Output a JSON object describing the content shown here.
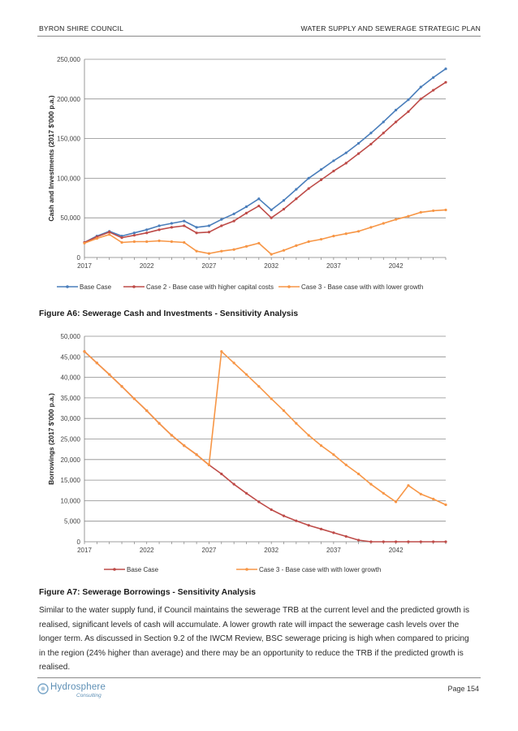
{
  "header": {
    "left": "BYRON SHIRE COUNCIL",
    "right": "WATER SUPPLY AND SEWERAGE STRATEGIC PLAN"
  },
  "chart_data": [
    {
      "type": "line",
      "title": "",
      "xlabel": "",
      "ylabel": "Cash and Investments (2017 $'000 p.a.)",
      "ylim": [
        0,
        250000
      ],
      "yticks": [
        0,
        50000,
        100000,
        150000,
        200000,
        250000
      ],
      "ytick_labels": [
        "0",
        "50,000",
        "100,000",
        "150,000",
        "200,000",
        "250,000"
      ],
      "xlim": [
        2017,
        2046
      ],
      "xticks": [
        2017,
        2022,
        2027,
        2032,
        2037,
        2042
      ],
      "xtick_labels": [
        "2017",
        "2022",
        "2027",
        "2032",
        "2037",
        "2042"
      ],
      "grid": true,
      "legend_position": "bottom",
      "x": [
        2017,
        2018,
        2019,
        2020,
        2021,
        2022,
        2023,
        2024,
        2025,
        2026,
        2027,
        2028,
        2029,
        2030,
        2031,
        2032,
        2033,
        2034,
        2035,
        2036,
        2037,
        2038,
        2039,
        2040,
        2041,
        2042,
        2043,
        2044,
        2045,
        2046
      ],
      "series": [
        {
          "name": "Base Case",
          "color": "#4a7ebb",
          "values": [
            19000,
            27000,
            33000,
            27000,
            31000,
            35000,
            40000,
            43000,
            46000,
            38000,
            40000,
            48000,
            55000,
            64000,
            74000,
            60000,
            72000,
            86000,
            100000,
            111000,
            122000,
            132000,
            144000,
            157000,
            171000,
            186000,
            199000,
            215000,
            227000,
            238000
          ]
        },
        {
          "name": "Case 2 - Base case with higher capital costs",
          "color": "#be4b48",
          "values": [
            19000,
            26000,
            32000,
            25000,
            28000,
            31000,
            35000,
            38000,
            40000,
            31000,
            32000,
            40000,
            46000,
            56000,
            65000,
            50000,
            61000,
            74000,
            87000,
            98000,
            109000,
            119000,
            131000,
            143000,
            157000,
            171000,
            184000,
            200000,
            211000,
            221000
          ]
        },
        {
          "name": "Case 3 - Base case with with lower growth",
          "color": "#f79646",
          "values": [
            18000,
            24000,
            29000,
            19000,
            20000,
            20000,
            21000,
            20000,
            19000,
            8000,
            5000,
            8000,
            10000,
            14000,
            18000,
            4000,
            9000,
            15000,
            20000,
            23000,
            27000,
            30000,
            33000,
            38000,
            43000,
            48000,
            52000,
            57000,
            59000,
            60000
          ]
        }
      ]
    },
    {
      "type": "line",
      "title": "",
      "xlabel": "",
      "ylabel": "Borrowings (2017 $'000 p.a.)",
      "ylim": [
        0,
        50000
      ],
      "yticks": [
        0,
        5000,
        10000,
        15000,
        20000,
        25000,
        30000,
        35000,
        40000,
        45000,
        50000
      ],
      "ytick_labels": [
        "0",
        "5,000",
        "10,000",
        "15,000",
        "20,000",
        "25,000",
        "30,000",
        "35,000",
        "40,000",
        "45,000",
        "50,000"
      ],
      "xlim": [
        2017,
        2046
      ],
      "xticks": [
        2017,
        2022,
        2027,
        2032,
        2037,
        2042
      ],
      "xtick_labels": [
        "2017",
        "2022",
        "2027",
        "2032",
        "2037",
        "2042"
      ],
      "grid": true,
      "legend_position": "bottom",
      "x": [
        2017,
        2018,
        2019,
        2020,
        2021,
        2022,
        2023,
        2024,
        2025,
        2026,
        2027,
        2028,
        2029,
        2030,
        2031,
        2032,
        2033,
        2034,
        2035,
        2036,
        2037,
        2038,
        2039,
        2040,
        2041,
        2042,
        2043,
        2044,
        2045,
        2046
      ],
      "series": [
        {
          "name": "Base Case",
          "color": "#be4b48",
          "values": [
            46300,
            43500,
            40700,
            37800,
            34800,
            31900,
            28800,
            25900,
            23400,
            21200,
            18700,
            16500,
            14000,
            11800,
            9700,
            7800,
            6300,
            5100,
            4000,
            3100,
            2200,
            1300,
            400,
            0,
            0,
            0,
            0,
            0,
            0,
            0
          ]
        },
        {
          "name": "Case 3 - Base case with with lower growth",
          "color": "#f79646",
          "values": [
            46300,
            43500,
            40700,
            37800,
            34800,
            31900,
            28800,
            25900,
            23400,
            21200,
            18700,
            46300,
            43500,
            40700,
            37800,
            34800,
            31900,
            28800,
            25900,
            23400,
            21200,
            18700,
            16500,
            14000,
            11800,
            9700,
            13700,
            11600,
            10400,
            9000
          ]
        }
      ]
    }
  ],
  "captions": {
    "fig_a6": "Figure A6: Sewerage Cash and Investments - Sensitivity Analysis",
    "fig_a7": "Figure A7: Sewerage Borrowings - Sensitivity Analysis"
  },
  "body": {
    "paragraph": "Similar to the water supply fund, if Council maintains the sewerage TRB at the current level and the predicted growth is realised, significant levels of cash will accumulate. A lower growth rate will impact the sewerage cash levels over the longer term. As discussed in Section 9.2 of the IWCM Review, BSC sewerage pricing is high when compared to pricing in the region (24% higher than average) and there may be an opportunity to reduce the TRB if the predicted growth is realised."
  },
  "footer": {
    "logo_name": "Hydrosphere",
    "logo_sub": "Consulting",
    "page": "Page 154"
  }
}
